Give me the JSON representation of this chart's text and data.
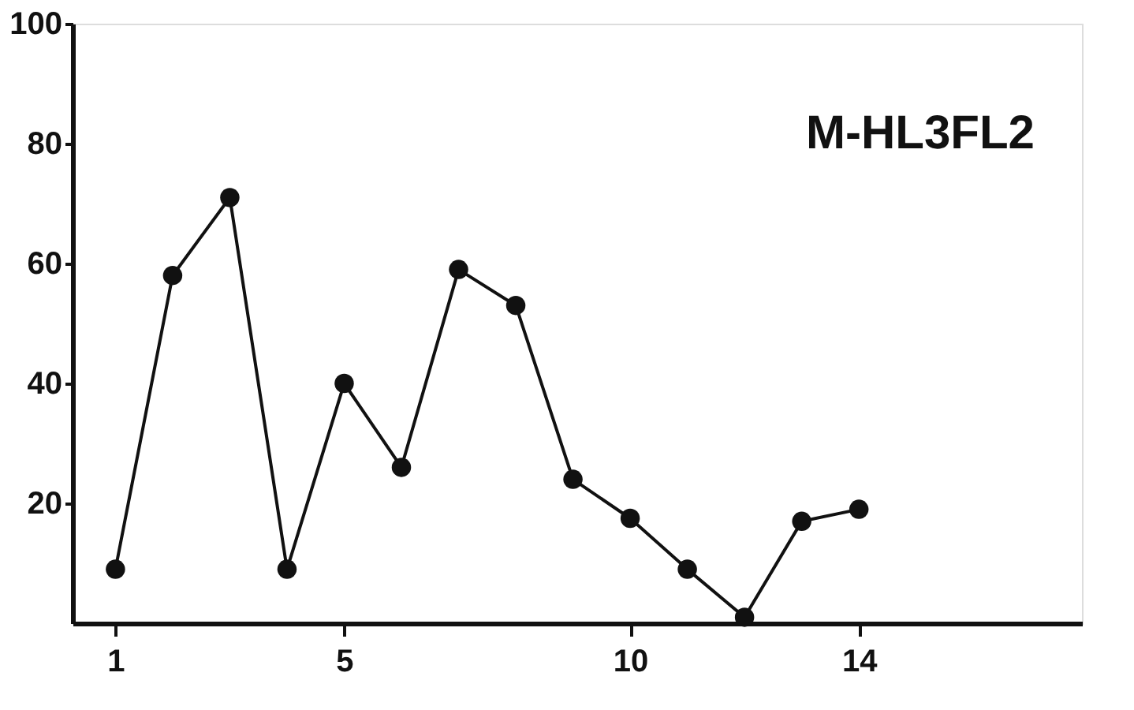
{
  "chart_data": {
    "type": "line",
    "x": [
      1,
      2,
      3,
      4,
      5,
      6,
      7,
      8,
      9,
      10,
      11,
      12,
      13,
      14
    ],
    "series": [
      {
        "color": "#111111",
        "values": [
          9,
          58,
          71,
          9,
          40,
          26,
          59,
          53,
          24,
          17.5,
          9,
          1,
          17,
          19
        ]
      }
    ],
    "xlim": [
      0.25,
      17.9
    ],
    "ylim": [
      0,
      100
    ],
    "xticks": [
      1,
      5,
      10,
      14
    ],
    "yticks": [
      20,
      40,
      60,
      80,
      100
    ],
    "marker": "circle",
    "line_style": "solid",
    "grid": false,
    "annotations": [
      "M-HL3FL2"
    ]
  }
}
